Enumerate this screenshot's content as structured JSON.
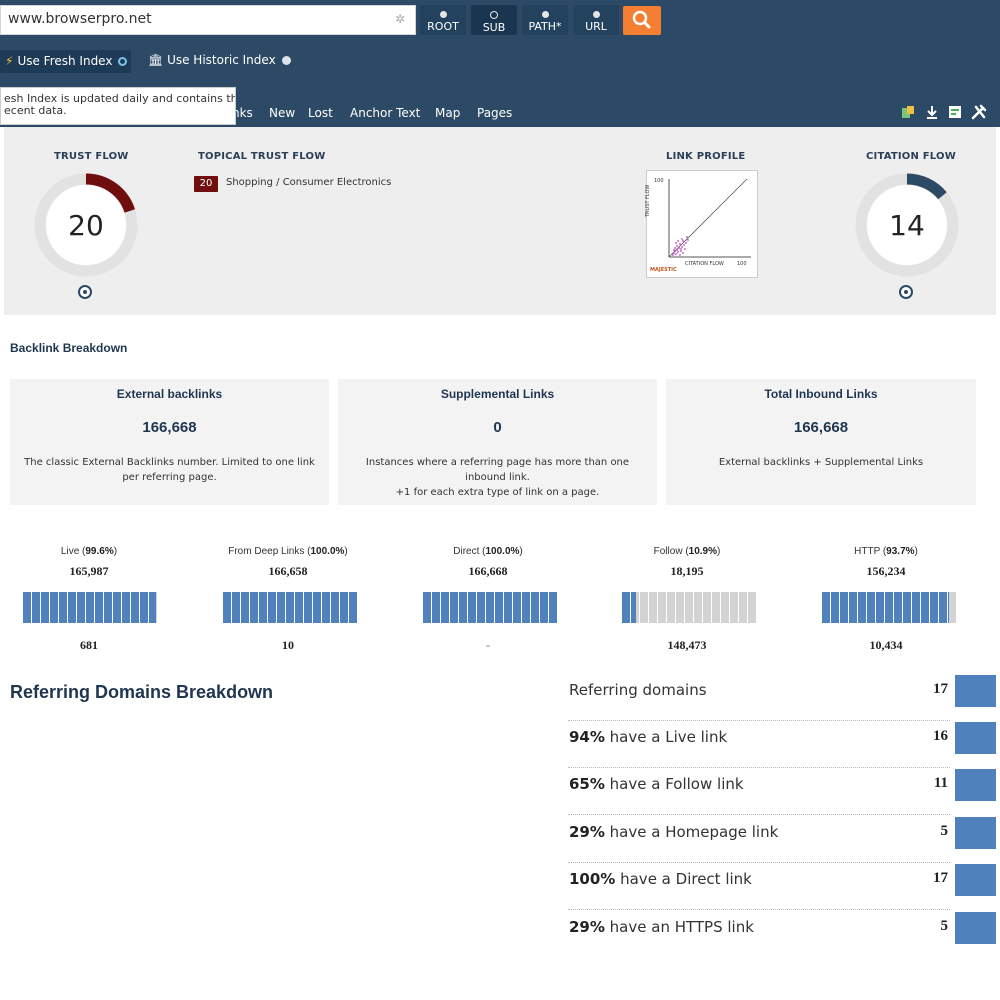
{
  "header": {
    "url_value": "www.browserpro.net",
    "scopes": [
      {
        "label": "ROOT"
      },
      {
        "label": "SUB"
      },
      {
        "label": "PATH*"
      },
      {
        "label": "URL"
      }
    ],
    "active_scope": "SUB",
    "index_options": {
      "fresh_label": "Use Fresh Index",
      "historic_label": "Use Historic Index"
    },
    "tooltip_line1": "esh Index is updated daily and contains the",
    "tooltip_line2": "ecent data.",
    "tabs": [
      {
        "label": "nks"
      },
      {
        "label": "New"
      },
      {
        "label": "Lost"
      },
      {
        "label": "Anchor Text"
      },
      {
        "label": "Map"
      },
      {
        "label": "Pages"
      }
    ],
    "accent_color": "#f47e31",
    "bar_color": "#2c4a66"
  },
  "metrics": {
    "trust_flow": {
      "label": "TRUST FLOW",
      "value": "20",
      "fraction": 0.2,
      "color": "#700e0e"
    },
    "topical_trust_flow": {
      "label": "TOPICAL TRUST FLOW",
      "badge": "20",
      "topic": "Shopping / Consumer Electronics"
    },
    "link_profile": {
      "label": "LINK PROFILE",
      "y_axis": "TRUST FLOW",
      "x_axis": "CITATION FLOW",
      "y_max": "100",
      "x_max": "100",
      "brand": "MAJESTIC"
    },
    "citation_flow": {
      "label": "CITATION FLOW",
      "value": "14",
      "fraction": 0.14,
      "color": "#2c4a66"
    }
  },
  "backlink_breakdown": {
    "title": "Backlink Breakdown",
    "cards": [
      {
        "title": "External backlinks",
        "value": "166,668",
        "desc": "The classic External Backlinks number. Limited to one link per referring page."
      },
      {
        "title": "Supplemental Links",
        "value": "0",
        "desc": "Instances where a referring page has more than one inbound link.",
        "desc2": "+1 for each extra type of link on a page."
      },
      {
        "title": "Total Inbound Links",
        "value": "166,668",
        "desc": "External backlinks + Supplemental Links"
      }
    ],
    "stats": [
      {
        "label": "Live",
        "pct": "99.6%",
        "value": "165,987",
        "rest": "681",
        "fraction": 0.996
      },
      {
        "label": "From Deep Links",
        "pct": "100.0%",
        "value": "166,658",
        "rest": "10",
        "fraction": 1.0
      },
      {
        "label": "Direct",
        "pct": "100.0%",
        "value": "166,668",
        "rest": "-",
        "fraction": 1.0
      },
      {
        "label": "Follow",
        "pct": "10.9%",
        "value": "18,195",
        "rest": "148,473",
        "fraction": 0.109
      },
      {
        "label": "HTTP",
        "pct": "93.7%",
        "value": "156,234",
        "rest": "10,434",
        "fraction": 0.937
      }
    ],
    "fill_color": "#4f81bd",
    "empty_color": "#d3d3d3"
  },
  "referring_domains": {
    "title": "Referring Domains Breakdown",
    "rows": [
      {
        "pct": "",
        "text": "Referring domains",
        "count": "17"
      },
      {
        "pct": "94%",
        "text": " have a Live link",
        "count": "16"
      },
      {
        "pct": "65%",
        "text": " have a Follow link",
        "count": "11"
      },
      {
        "pct": "29%",
        "text": " have a Homepage link",
        "count": "5"
      },
      {
        "pct": "100%",
        "text": " have a Direct link",
        "count": "17"
      },
      {
        "pct": "29%",
        "text": " have an HTTPS link",
        "count": "5"
      }
    ]
  }
}
